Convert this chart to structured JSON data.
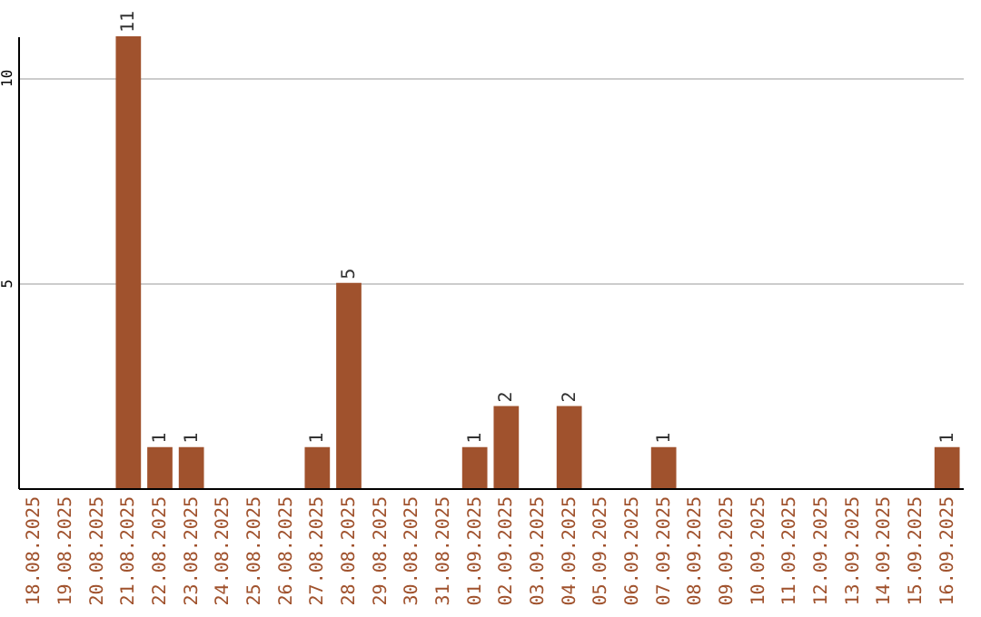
{
  "chart_data": {
    "type": "bar",
    "categories": [
      "18.08.2025",
      "19.08.2025",
      "20.08.2025",
      "21.08.2025",
      "22.08.2025",
      "23.08.2025",
      "24.08.2025",
      "25.08.2025",
      "26.08.2025",
      "27.08.2025",
      "28.08.2025",
      "29.08.2025",
      "30.08.2025",
      "31.08.2025",
      "01.09.2025",
      "02.09.2025",
      "03.09.2025",
      "04.09.2025",
      "05.09.2025",
      "06.09.2025",
      "07.09.2025",
      "08.09.2025",
      "09.09.2025",
      "10.09.2025",
      "11.09.2025",
      "12.09.2025",
      "13.09.2025",
      "14.09.2025",
      "15.09.2025",
      "16.09.2025"
    ],
    "values": [
      null,
      null,
      null,
      11,
      1,
      1,
      null,
      null,
      null,
      1,
      5,
      null,
      null,
      null,
      1,
      2,
      null,
      2,
      null,
      null,
      1,
      null,
      null,
      null,
      null,
      null,
      null,
      null,
      null,
      1
    ],
    "color": "#a0522d",
    "ylim": [
      0,
      11
    ],
    "yticks": [
      5,
      10
    ],
    "grid": "y",
    "data_labels": true
  }
}
